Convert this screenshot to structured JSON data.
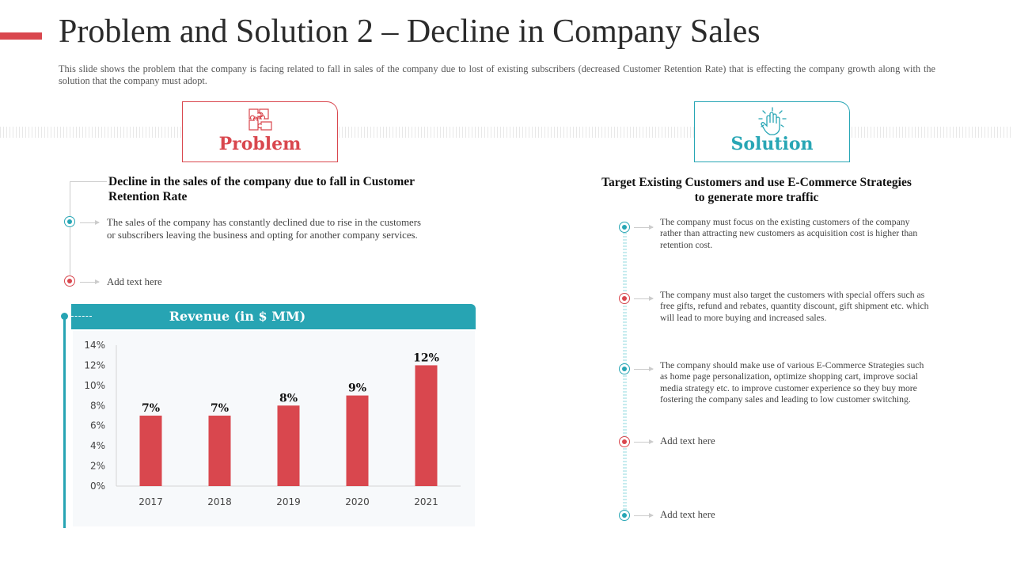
{
  "title": "Problem and Solution 2 – Decline in Company Sales",
  "subtitle": "This slide shows the problem that the company is facing related to fall in sales of the company due to lost of existing subscribers (decreased Customer Retention Rate) that is effecting the company growth along with the solution that the company must adopt.",
  "problem": {
    "label": "Problem",
    "heading": "Decline in the sales of the company due to fall in Customer Retention Rate",
    "points": [
      "The sales of the company has constantly declined due to rise in the customers or subscribers leaving the business and opting for another company services.",
      "Add text here"
    ]
  },
  "solution": {
    "label": "Solution",
    "heading": "Target Existing Customers and use E-Commerce Strategies to generate more traffic",
    "points": [
      "The company must focus on the existing customers of the company rather than attracting new customers as acquisition cost is higher than retention cost.",
      "The company must also target the customers with special offers such as free gifts, refund and rebates, quantity discount, gift shipment etc. which will lead to more buying and increased sales.",
      "The company should make use of various E-Commerce Strategies such as home page personalization, optimize shopping cart, improve social media strategy etc. to improve customer experience so they buy more fostering the company sales and leading to low customer switching.",
      "Add text here",
      "Add text here"
    ]
  },
  "colors": {
    "accent_red": "#d9474e",
    "accent_teal": "#27a4b3"
  },
  "chart_data": {
    "type": "bar",
    "title": "Revenue (in $ MM)",
    "categories": [
      "2017",
      "2018",
      "2019",
      "2020",
      "2021"
    ],
    "values": [
      7,
      7,
      8,
      9,
      12
    ],
    "data_labels": [
      "7%",
      "7%",
      "8%",
      "9%",
      "12%"
    ],
    "ylim": [
      0,
      14
    ],
    "yticks": [
      0,
      2,
      4,
      6,
      8,
      10,
      12,
      14
    ],
    "ytick_labels": [
      "0%",
      "2%",
      "4%",
      "6%",
      "8%",
      "10%",
      "12%",
      "14%"
    ],
    "xlabel": "",
    "ylabel": "",
    "grid": false,
    "bar_color": "#d9474e"
  }
}
